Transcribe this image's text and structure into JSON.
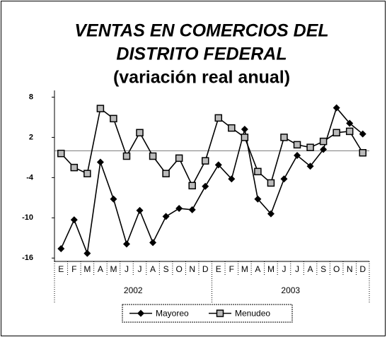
{
  "chart_data": {
    "type": "line",
    "title": [
      "VENTAS EN COMERCIOS DEL",
      "DISTRITO FEDERAL"
    ],
    "subtitle": "(variación real anual)",
    "categories": [
      "E",
      "F",
      "M",
      "A",
      "M",
      "J",
      "J",
      "A",
      "S",
      "O",
      "N",
      "D",
      "E",
      "F",
      "M",
      "A",
      "M",
      "J",
      "J",
      "A",
      "S",
      "O",
      "N",
      "D"
    ],
    "x_groups": [
      "2002",
      "2003"
    ],
    "series": [
      {
        "name": "Mayoreo",
        "color": "#000000",
        "marker": "diamond",
        "values": [
          -14.6,
          -10.3,
          -15.3,
          -1.7,
          -7.2,
          -13.9,
          -8.9,
          -13.7,
          -9.8,
          -8.6,
          -8.8,
          -5.3,
          -2.1,
          -4.2,
          3.2,
          -7.2,
          -9.4,
          -4.2,
          -0.7,
          -2.3,
          0.2,
          6.4,
          4.1,
          2.5
        ]
      },
      {
        "name": "Menudeo",
        "color": "#000000",
        "marker": "square",
        "values": [
          -0.4,
          -2.5,
          -3.4,
          6.3,
          4.8,
          -0.8,
          2.7,
          -0.8,
          -3.4,
          -1.1,
          -5.2,
          -1.5,
          4.9,
          3.4,
          2.0,
          -3.1,
          -4.8,
          2.0,
          0.9,
          0.5,
          1.4,
          2.7,
          2.9,
          -0.3
        ]
      }
    ],
    "ylim": [
      -16.5,
      9
    ],
    "yticks": [
      8,
      2,
      -4,
      -10,
      -16
    ],
    "legend": "bottom"
  }
}
